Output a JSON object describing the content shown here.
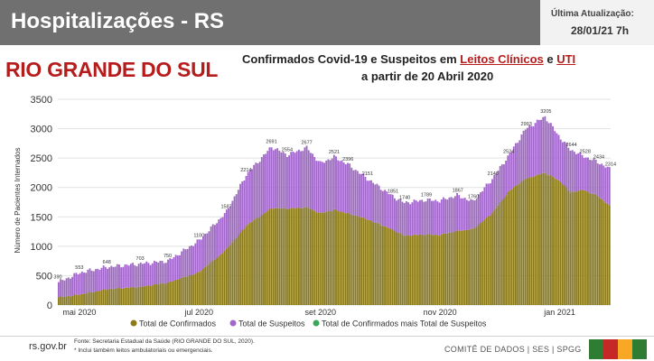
{
  "header": {
    "title": "Hospitalizações - RS",
    "update_label": "Última Atualização:",
    "update_date": "28/01/21 7h"
  },
  "region": "RIO GRANDE DO SUL",
  "subtitle": {
    "part1": "Confirmados Covid-19 e Suspeitos em ",
    "leitos": "Leitos Clínicos",
    "conj": " e ",
    "uti": "UTI",
    "line2": "a partir de 20 Abril 2020"
  },
  "chart_data": {
    "type": "bar",
    "stacked": true,
    "ylabel": "Número de Pacientes Internados",
    "ylim": [
      0,
      3500
    ],
    "yticks": [
      0,
      500,
      1000,
      1500,
      2000,
      2500,
      3000,
      3500
    ],
    "xlim": [
      "2020-04-20",
      "2021-01-27"
    ],
    "xticks": [
      {
        "label": "mai 2020",
        "date": "2020-05-01"
      },
      {
        "label": "jul 2020",
        "date": "2020-07-01"
      },
      {
        "label": "set 2020",
        "date": "2020-09-01"
      },
      {
        "label": "nov 2020",
        "date": "2020-11-01"
      },
      {
        "label": "jan 2021",
        "date": "2021-01-01"
      }
    ],
    "grid": true,
    "legend_position": "bottom",
    "series": [
      {
        "name": "Total de Confirmados",
        "color": "#8a7a1a",
        "key": "confirmados"
      },
      {
        "name": "Total de Suspeitos",
        "color": "#a066c8",
        "key": "suspeitos"
      },
      {
        "name": "Total de Confirmados mais Total de Suspeitos",
        "color": "#3aa657",
        "key": "total"
      }
    ],
    "total_keypoints": [
      [
        "2020-04-20",
        390
      ],
      [
        "2020-05-01",
        553
      ],
      [
        "2020-05-15",
        648
      ],
      [
        "2020-06-01",
        703
      ],
      [
        "2020-06-15",
        750
      ],
      [
        "2020-07-01",
        1100
      ],
      [
        "2020-07-15",
        1587
      ],
      [
        "2020-07-25",
        2214
      ],
      [
        "2020-08-07",
        2691
      ],
      [
        "2020-08-15",
        2554
      ],
      [
        "2020-08-25",
        2677
      ],
      [
        "2020-09-01",
        2410
      ],
      [
        "2020-09-08",
        2521
      ],
      [
        "2020-09-15",
        2396
      ],
      [
        "2020-09-25",
        2151
      ],
      [
        "2020-10-08",
        1851
      ],
      [
        "2020-10-14",
        1740
      ],
      [
        "2020-10-25",
        1789
      ],
      [
        "2020-11-01",
        1774
      ],
      [
        "2020-11-10",
        1867
      ],
      [
        "2020-11-18",
        1760
      ],
      [
        "2020-11-28",
        2146
      ],
      [
        "2020-12-06",
        2524
      ],
      [
        "2020-12-15",
        2993
      ],
      [
        "2020-12-25",
        3205
      ],
      [
        "2021-01-02",
        2835
      ],
      [
        "2021-01-07",
        2644
      ],
      [
        "2021-01-14",
        2528
      ],
      [
        "2021-01-21",
        2434
      ],
      [
        "2021-01-27",
        2314
      ]
    ],
    "confirmados_keypoints": [
      [
        "2020-04-20",
        130
      ],
      [
        "2020-05-01",
        180
      ],
      [
        "2020-05-15",
        270
      ],
      [
        "2020-06-01",
        310
      ],
      [
        "2020-06-15",
        380
      ],
      [
        "2020-07-01",
        560
      ],
      [
        "2020-07-15",
        950
      ],
      [
        "2020-07-25",
        1350
      ],
      [
        "2020-08-07",
        1650
      ],
      [
        "2020-08-15",
        1640
      ],
      [
        "2020-08-25",
        1660
      ],
      [
        "2020-09-01",
        1560
      ],
      [
        "2020-09-08",
        1620
      ],
      [
        "2020-09-15",
        1560
      ],
      [
        "2020-09-25",
        1460
      ],
      [
        "2020-10-08",
        1280
      ],
      [
        "2020-10-14",
        1180
      ],
      [
        "2020-10-25",
        1200
      ],
      [
        "2020-11-01",
        1190
      ],
      [
        "2020-11-10",
        1260
      ],
      [
        "2020-11-18",
        1290
      ],
      [
        "2020-11-28",
        1560
      ],
      [
        "2020-12-06",
        1920
      ],
      [
        "2020-12-15",
        2150
      ],
      [
        "2020-12-25",
        2250
      ],
      [
        "2021-01-02",
        2100
      ],
      [
        "2021-01-07",
        1920
      ],
      [
        "2021-01-14",
        1960
      ],
      [
        "2021-01-21",
        1850
      ],
      [
        "2021-01-27",
        1690
      ]
    ],
    "data_labels": [
      {
        "date": "2020-04-20",
        "value": 390
      },
      {
        "date": "2020-05-01",
        "value": 553
      },
      {
        "date": "2020-05-15",
        "value": 648
      },
      {
        "date": "2020-06-01",
        "value": 703
      },
      {
        "date": "2020-06-15",
        "value": 750
      },
      {
        "date": "2020-07-01",
        "value": 1100
      },
      {
        "date": "2020-07-15",
        "value": 1587
      },
      {
        "date": "2020-07-25",
        "value": 2214
      },
      {
        "date": "2020-08-07",
        "value": 2691
      },
      {
        "date": "2020-08-15",
        "value": 2554
      },
      {
        "date": "2020-08-25",
        "value": 2677
      },
      {
        "date": "2020-09-08",
        "value": 2521
      },
      {
        "date": "2020-09-15",
        "value": 2396
      },
      {
        "date": "2020-09-25",
        "value": 2151
      },
      {
        "date": "2020-10-08",
        "value": 1851
      },
      {
        "date": "2020-10-14",
        "value": 1740
      },
      {
        "date": "2020-10-25",
        "value": 1789
      },
      {
        "date": "2020-11-10",
        "value": 1867
      },
      {
        "date": "2020-11-18",
        "value": 1760
      },
      {
        "date": "2020-11-28",
        "value": 2146
      },
      {
        "date": "2020-12-06",
        "value": 2524
      },
      {
        "date": "2020-12-15",
        "value": 2993
      },
      {
        "date": "2020-12-25",
        "value": 3205
      },
      {
        "date": "2021-01-07",
        "value": 2644
      },
      {
        "date": "2021-01-14",
        "value": 2528
      },
      {
        "date": "2021-01-21",
        "value": 2434
      },
      {
        "date": "2021-01-27",
        "value": 2314
      }
    ]
  },
  "footer": {
    "site": "rs.gov.br",
    "source_line1": "Fonte: Secretaria Estadual da Saúde (RIO GRANDE DO SUL, 2020).",
    "source_line2": "* Inclui também leitos ambulatoriais ou emergenciais.",
    "org": "COMITÊ DE DADOS | SES | SPGG",
    "flag_colors": [
      "#2e7d32",
      "#c62828",
      "#f9a825",
      "#2e7d32"
    ]
  }
}
